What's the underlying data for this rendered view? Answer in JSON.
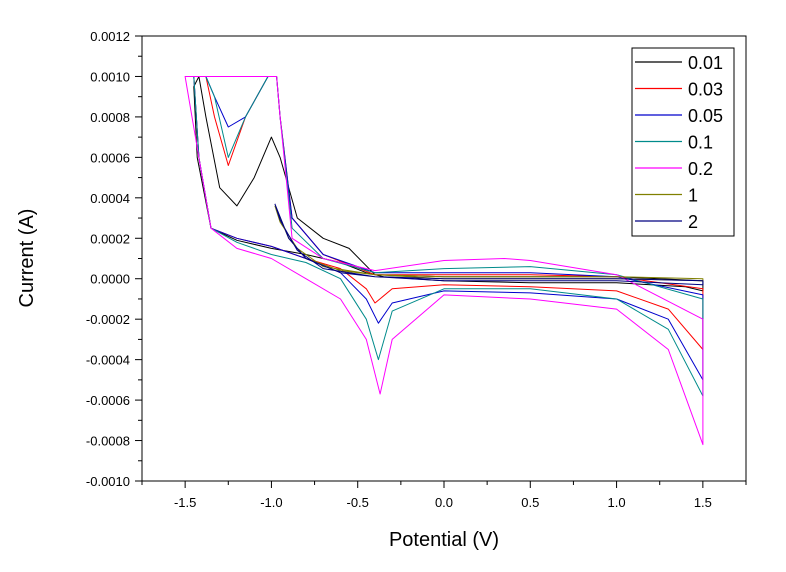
{
  "chart_data": {
    "type": "line",
    "title": "",
    "xlabel": "Potential (V)",
    "ylabel": "Current (A)",
    "xlim": [
      -1.75,
      1.75
    ],
    "ylim": [
      -0.001,
      0.0012
    ],
    "x_ticks": [
      -1.5,
      -1.0,
      -0.5,
      0.0,
      0.5,
      1.0,
      1.5
    ],
    "x_tick_labels": [
      "-1.5",
      "-1.0",
      "-0.5",
      "0.0",
      "0.5",
      "1.0",
      "1.5"
    ],
    "y_ticks": [
      -0.001,
      -0.0008,
      -0.0006,
      -0.0004,
      -0.0002,
      0.0,
      0.0002,
      0.0004,
      0.0006,
      0.0008,
      0.001,
      0.0012
    ],
    "y_tick_labels": [
      "-0.0010",
      "-0.0008",
      "-0.0006",
      "-0.0004",
      "-0.0002",
      "0.0000",
      "0.0002",
      "0.0004",
      "0.0006",
      "0.0008",
      "0.0010",
      "0.0012"
    ],
    "grid": false,
    "legend_position": "top-right",
    "series": [
      {
        "name": "0.01",
        "color": "#000000",
        "points": [
          [
            -1.0,
            0.00015
          ],
          [
            -0.8,
            0.00012
          ],
          [
            -0.6,
            8e-05
          ],
          [
            -0.45,
            3e-05
          ],
          [
            -0.35,
            1e-05
          ],
          [
            0.0,
            -1e-05
          ],
          [
            0.5,
            -2e-05
          ],
          [
            1.0,
            -2e-05
          ],
          [
            1.4,
            -4e-05
          ],
          [
            1.5,
            -6e-05
          ],
          [
            1.5,
            -1e-05
          ],
          [
            1.0,
            1e-05
          ],
          [
            0.5,
            1e-05
          ],
          [
            0.0,
            1e-05
          ],
          [
            -0.4,
            2e-05
          ],
          [
            -0.55,
            0.00015
          ],
          [
            -0.7,
            0.0002
          ],
          [
            -0.85,
            0.0003
          ],
          [
            -0.95,
            0.0006
          ],
          [
            -1.0,
            0.0007
          ],
          [
            -1.1,
            0.0005
          ],
          [
            -1.2,
            0.00036
          ],
          [
            -1.3,
            0.00045
          ],
          [
            -1.38,
            0.0008
          ],
          [
            -1.42,
            0.001
          ],
          [
            -1.45,
            0.00095
          ],
          [
            -1.43,
            0.0006
          ],
          [
            -1.35,
            0.00025
          ],
          [
            -1.2,
            0.00019
          ],
          [
            -1.0,
            0.00015
          ]
        ]
      },
      {
        "name": "0.03",
        "color": "#ff0000",
        "points": [
          [
            -1.0,
            0.00016
          ],
          [
            -0.8,
            0.0001
          ],
          [
            -0.6,
            5e-05
          ],
          [
            -0.45,
            -5e-05
          ],
          [
            -0.4,
            -0.00012
          ],
          [
            -0.3,
            -5e-05
          ],
          [
            0.0,
            -3e-05
          ],
          [
            0.5,
            -4e-05
          ],
          [
            1.0,
            -6e-05
          ],
          [
            1.3,
            -0.00015
          ],
          [
            1.5,
            -0.00035
          ],
          [
            1.5,
            -5e-05
          ],
          [
            1.0,
            1e-05
          ],
          [
            0.5,
            2e-05
          ],
          [
            0.0,
            2e-05
          ],
          [
            -0.4,
            2e-05
          ],
          [
            -0.7,
            0.00012
          ],
          [
            -0.88,
            0.0003
          ],
          [
            -0.95,
            0.0008
          ],
          [
            -0.97,
            0.001
          ],
          [
            -1.02,
            0.001
          ],
          [
            -1.15,
            0.0008
          ],
          [
            -1.25,
            0.00056
          ],
          [
            -1.33,
            0.0008
          ],
          [
            -1.38,
            0.001
          ],
          [
            -1.45,
            0.001
          ],
          [
            -1.42,
            0.0006
          ],
          [
            -1.35,
            0.00025
          ],
          [
            -1.2,
            0.0002
          ],
          [
            -1.0,
            0.00016
          ]
        ]
      },
      {
        "name": "0.05",
        "color": "#0000cc",
        "points": [
          [
            -1.0,
            0.00016
          ],
          [
            -0.8,
            0.0001
          ],
          [
            -0.6,
            3e-05
          ],
          [
            -0.45,
            -0.0001
          ],
          [
            -0.38,
            -0.00022
          ],
          [
            -0.3,
            -0.00012
          ],
          [
            0.0,
            -6e-05
          ],
          [
            0.5,
            -7e-05
          ],
          [
            1.0,
            -0.0001
          ],
          [
            1.3,
            -0.0002
          ],
          [
            1.5,
            -0.0005
          ],
          [
            1.5,
            -8e-05
          ],
          [
            1.0,
            1e-05
          ],
          [
            0.5,
            3e-05
          ],
          [
            0.0,
            3e-05
          ],
          [
            -0.4,
            3e-05
          ],
          [
            -0.7,
            0.00012
          ],
          [
            -0.88,
            0.0003
          ],
          [
            -0.95,
            0.0008
          ],
          [
            -0.97,
            0.001
          ],
          [
            -1.02,
            0.001
          ],
          [
            -1.15,
            0.0008
          ],
          [
            -1.25,
            0.00075
          ],
          [
            -1.33,
            0.0009
          ],
          [
            -1.38,
            0.001
          ],
          [
            -1.45,
            0.001
          ],
          [
            -1.42,
            0.0006
          ],
          [
            -1.35,
            0.00025
          ],
          [
            -1.2,
            0.0002
          ],
          [
            -1.0,
            0.00016
          ]
        ]
      },
      {
        "name": "0.1",
        "color": "#008b8b",
        "points": [
          [
            -1.0,
            0.00012
          ],
          [
            -0.8,
            8e-05
          ],
          [
            -0.6,
            0.0
          ],
          [
            -0.45,
            -0.0002
          ],
          [
            -0.38,
            -0.0004
          ],
          [
            -0.3,
            -0.00016
          ],
          [
            0.0,
            -5e-05
          ],
          [
            0.5,
            -5e-05
          ],
          [
            1.0,
            -0.0001
          ],
          [
            1.3,
            -0.00025
          ],
          [
            1.5,
            -0.00058
          ],
          [
            1.5,
            -0.0001
          ],
          [
            1.0,
            2e-05
          ],
          [
            0.5,
            6e-05
          ],
          [
            0.0,
            5e-05
          ],
          [
            -0.4,
            3e-05
          ],
          [
            -0.7,
            0.0001
          ],
          [
            -0.88,
            0.00025
          ],
          [
            -0.95,
            0.0008
          ],
          [
            -0.97,
            0.001
          ],
          [
            -1.02,
            0.001
          ],
          [
            -1.15,
            0.0008
          ],
          [
            -1.25,
            0.0006
          ],
          [
            -1.33,
            0.0009
          ],
          [
            -1.38,
            0.001
          ],
          [
            -1.45,
            0.001
          ],
          [
            -1.42,
            0.0006
          ],
          [
            -1.35,
            0.00025
          ],
          [
            -1.2,
            0.00018
          ],
          [
            -1.0,
            0.00012
          ]
        ]
      },
      {
        "name": "0.2",
        "color": "#ff00ff",
        "points": [
          [
            -1.0,
            0.0001
          ],
          [
            -0.8,
            0.0
          ],
          [
            -0.6,
            -0.0001
          ],
          [
            -0.45,
            -0.0003
          ],
          [
            -0.37,
            -0.00057
          ],
          [
            -0.3,
            -0.0003
          ],
          [
            0.0,
            -8e-05
          ],
          [
            0.5,
            -0.0001
          ],
          [
            1.0,
            -0.00015
          ],
          [
            1.3,
            -0.00035
          ],
          [
            1.5,
            -0.00082
          ],
          [
            1.5,
            -0.0002
          ],
          [
            1.0,
            2e-05
          ],
          [
            0.5,
            9e-05
          ],
          [
            0.35,
            0.0001
          ],
          [
            0.0,
            9e-05
          ],
          [
            -0.4,
            4e-05
          ],
          [
            -0.7,
            0.0001
          ],
          [
            -0.88,
            0.0002
          ],
          [
            -0.95,
            0.0008
          ],
          [
            -0.97,
            0.001
          ],
          [
            -1.25,
            0.001
          ],
          [
            -1.32,
            0.001
          ],
          [
            -1.45,
            0.001
          ],
          [
            -1.5,
            0.001
          ],
          [
            -1.42,
            0.0006
          ],
          [
            -1.35,
            0.00025
          ],
          [
            -1.2,
            0.00015
          ],
          [
            -1.0,
            0.0001
          ]
        ]
      },
      {
        "name": "1",
        "color": "#808000",
        "points": [
          [
            -0.98,
            0.00036
          ],
          [
            -0.9,
            0.0002
          ],
          [
            -0.8,
            0.0001
          ],
          [
            -0.6,
            4e-05
          ],
          [
            -0.4,
            2e-05
          ],
          [
            0.0,
            0.0
          ],
          [
            0.5,
            0.0
          ],
          [
            1.0,
            0.0
          ],
          [
            1.5,
            -1e-05
          ],
          [
            1.5,
            0.0
          ],
          [
            1.0,
            1e-05
          ],
          [
            0.5,
            1e-05
          ],
          [
            0.0,
            1e-05
          ],
          [
            -0.4,
            2e-05
          ],
          [
            -0.7,
            6e-05
          ],
          [
            -0.85,
            0.00015
          ],
          [
            -0.95,
            0.00028
          ],
          [
            -0.98,
            0.00036
          ]
        ]
      },
      {
        "name": "2",
        "color": "#000080",
        "points": [
          [
            -0.98,
            0.00037
          ],
          [
            -0.9,
            0.0002
          ],
          [
            -0.8,
            0.0001
          ],
          [
            -0.6,
            3e-05
          ],
          [
            -0.4,
            1e-05
          ],
          [
            0.0,
            -1e-05
          ],
          [
            0.5,
            -1e-05
          ],
          [
            1.0,
            -1e-05
          ],
          [
            1.5,
            -3e-05
          ],
          [
            1.5,
            -1e-05
          ],
          [
            1.0,
            0.0
          ],
          [
            0.5,
            0.0
          ],
          [
            0.0,
            0.0
          ],
          [
            -0.4,
            1e-05
          ],
          [
            -0.7,
            5e-05
          ],
          [
            -0.85,
            0.00014
          ],
          [
            -0.95,
            0.00029
          ],
          [
            -0.98,
            0.00037
          ]
        ]
      }
    ]
  }
}
